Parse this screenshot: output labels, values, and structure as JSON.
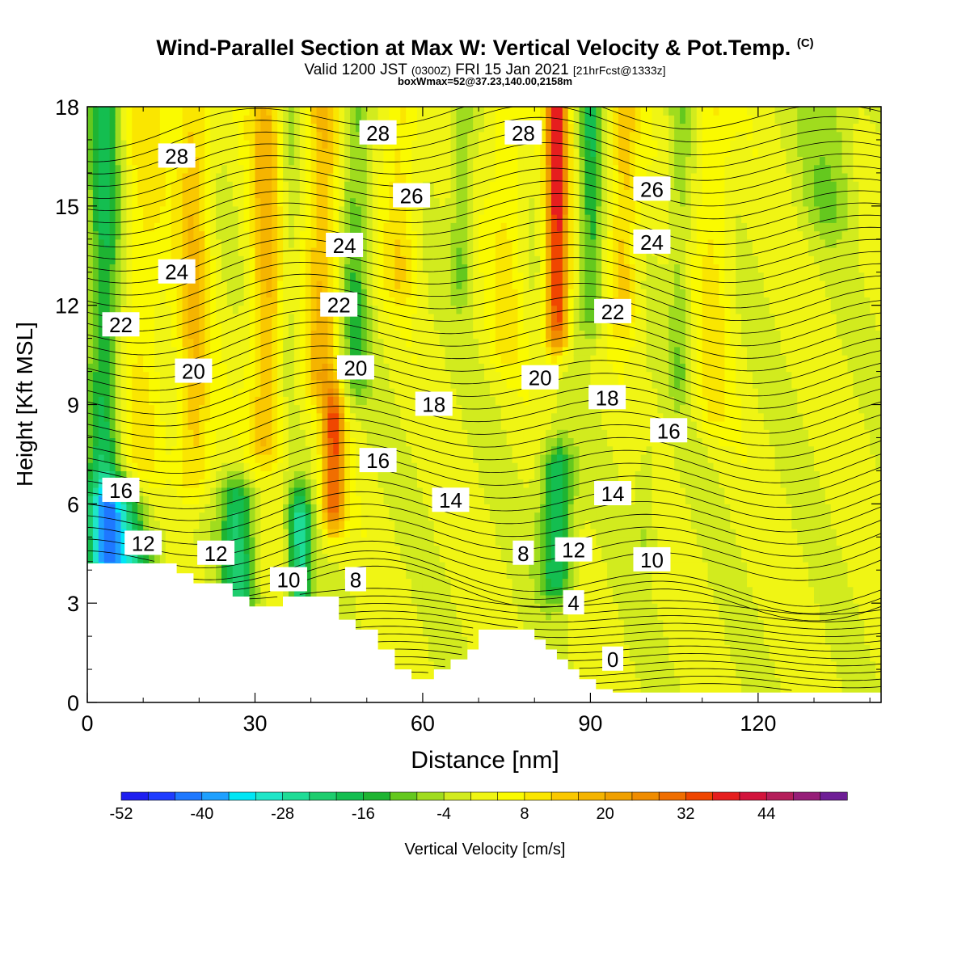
{
  "title": {
    "main": "Wind-Parallel Section at Max W: Vertical Velocity & Pot.Temp.",
    "copyright": "(C)",
    "valid_prefix": "Valid 1200 JST",
    "valid_z": "(0300Z)",
    "valid_date": "FRI 15 Jan 2021",
    "forecast": "[21hrFcst@1333z]",
    "box": "boxWmax=52@37.23,140.00,2158m"
  },
  "colors": {
    "terrain": "#ffffff",
    "contour": "#000000",
    "palette": [
      "#1e1ef0",
      "#1e3cff",
      "#1e78ff",
      "#1ea0ff",
      "#00e6f5",
      "#1ee6c8",
      "#1edc96",
      "#1ecd6e",
      "#14be50",
      "#1eb432",
      "#64c81e",
      "#a0dc1e",
      "#d2eb1e",
      "#f0f514",
      "#fafa00",
      "#fae600",
      "#fac800",
      "#f5b400",
      "#f0a000",
      "#f08c00",
      "#f06e00",
      "#f04600",
      "#e61e1e",
      "#d2143c",
      "#b41e5a",
      "#961e78",
      "#6e1e96"
    ]
  },
  "chart_data": {
    "type": "heatmap",
    "xlabel": "Distance [nm]",
    "ylabel": "Height [Kft MSL]",
    "xlim": [
      0,
      142
    ],
    "ylim": [
      0,
      18
    ],
    "xticks": [
      0,
      30,
      60,
      90,
      120
    ],
    "yticks": [
      0,
      3,
      6,
      9,
      12,
      15,
      18
    ],
    "colorbar": {
      "label": "Vertical Velocity [cm/s]",
      "ticks": [
        -52,
        -40,
        -28,
        -16,
        -4,
        8,
        20,
        32,
        44
      ],
      "min": -52,
      "max": 56,
      "step": 4
    },
    "terrain_kft": [
      [
        0,
        4.2
      ],
      [
        16,
        4.2
      ],
      [
        16,
        3.9
      ],
      [
        19,
        3.9
      ],
      [
        19,
        3.6
      ],
      [
        26,
        3.6
      ],
      [
        26,
        3.2
      ],
      [
        29,
        3.2
      ],
      [
        29,
        2.9
      ],
      [
        35,
        2.9
      ],
      [
        35,
        3.2
      ],
      [
        45,
        3.2
      ],
      [
        45,
        2.5
      ],
      [
        48,
        2.5
      ],
      [
        48,
        2.2
      ],
      [
        52,
        2.2
      ],
      [
        52,
        1.6
      ],
      [
        55,
        1.6
      ],
      [
        55,
        1.0
      ],
      [
        58,
        1.0
      ],
      [
        58,
        0.7
      ],
      [
        62,
        0.7
      ],
      [
        62,
        1.0
      ],
      [
        65,
        1.0
      ],
      [
        65,
        1.3
      ],
      [
        68,
        1.3
      ],
      [
        68,
        1.6
      ],
      [
        70,
        1.6
      ],
      [
        70,
        2.2
      ],
      [
        80,
        2.2
      ],
      [
        80,
        1.9
      ],
      [
        82,
        1.9
      ],
      [
        82,
        1.6
      ],
      [
        84,
        1.6
      ],
      [
        84,
        1.3
      ],
      [
        86,
        1.3
      ],
      [
        86,
        1.0
      ],
      [
        88,
        1.0
      ],
      [
        88,
        0.7
      ],
      [
        91,
        0.7
      ],
      [
        91,
        0.4
      ],
      [
        94,
        0.4
      ],
      [
        94,
        0.3
      ],
      [
        142,
        0.3
      ]
    ],
    "wind_features": [
      {
        "x": 3,
        "y0": 4.5,
        "y1": 18,
        "w": -18,
        "width": 3
      },
      {
        "x": 10,
        "y0": 6,
        "y1": 18,
        "w": 8,
        "width": 4
      },
      {
        "x": 19,
        "y0": 7,
        "y1": 18,
        "w": 14,
        "width": 3
      },
      {
        "x": 32,
        "y0": 8,
        "y1": 18,
        "w": 16,
        "width": 3
      },
      {
        "x": 36,
        "y0": 10,
        "y1": 18,
        "w": -6,
        "width": 2
      },
      {
        "x": 42,
        "y0": 10,
        "y1": 18,
        "w": 16,
        "width": 3
      },
      {
        "x": 48,
        "y0": 10,
        "y1": 18,
        "w": -12,
        "width": 2.5
      },
      {
        "x": 56,
        "y0": 13,
        "y1": 18,
        "w": 10,
        "width": 3
      },
      {
        "x": 67,
        "y0": 13,
        "y1": 18,
        "w": -10,
        "width": 2
      },
      {
        "x": 75,
        "y0": 11,
        "y1": 18,
        "w": 8,
        "width": 3
      },
      {
        "x": 84,
        "y0": 11.5,
        "y1": 18,
        "w": 36,
        "width": 2
      },
      {
        "x": 90,
        "y0": 12,
        "y1": 18,
        "w": -16,
        "width": 2
      },
      {
        "x": 96,
        "y0": 12,
        "y1": 18,
        "w": 14,
        "width": 2.5
      },
      {
        "x": 106,
        "y0": 10,
        "y1": 18,
        "w": -8,
        "width": 2
      },
      {
        "x": 112,
        "y0": 9,
        "y1": 18,
        "w": 8,
        "width": 3
      },
      {
        "x": 133,
        "y0": 15,
        "y1": 18,
        "w": -8,
        "width": 5
      },
      {
        "x": 44,
        "y0": 6,
        "y1": 8.5,
        "w": 30,
        "width": 2
      },
      {
        "x": 6,
        "y0": 4.2,
        "y1": 5.8,
        "w": -28,
        "width": 6
      },
      {
        "x": 27,
        "y0": 3.4,
        "y1": 6.0,
        "w": -22,
        "width": 3
      },
      {
        "x": 38,
        "y0": 3.2,
        "y1": 5.5,
        "w": -26,
        "width": 2
      },
      {
        "x": 84,
        "y0": 4.0,
        "y1": 7.0,
        "w": -22,
        "width": 3
      },
      {
        "x": 100,
        "y0": 5.0,
        "y1": 7.0,
        "w": -6,
        "width": 2
      }
    ],
    "theta_contour_labels": [
      {
        "value": "28",
        "x": 16,
        "y": 16.5
      },
      {
        "value": "28",
        "x": 52,
        "y": 17.2
      },
      {
        "value": "28",
        "x": 78,
        "y": 17.2
      },
      {
        "value": "26",
        "x": 58,
        "y": 15.3
      },
      {
        "value": "26",
        "x": 101,
        "y": 15.5
      },
      {
        "value": "24",
        "x": 16,
        "y": 13.0
      },
      {
        "value": "24",
        "x": 46,
        "y": 13.8
      },
      {
        "value": "24",
        "x": 101,
        "y": 13.9
      },
      {
        "value": "22",
        "x": 6,
        "y": 11.4
      },
      {
        "value": "22",
        "x": 45,
        "y": 12.0
      },
      {
        "value": "22",
        "x": 94,
        "y": 11.8
      },
      {
        "value": "20",
        "x": 19,
        "y": 10.0
      },
      {
        "value": "20",
        "x": 48,
        "y": 10.1
      },
      {
        "value": "20",
        "x": 81,
        "y": 9.8
      },
      {
        "value": "18",
        "x": 62,
        "y": 9.0
      },
      {
        "value": "18",
        "x": 93,
        "y": 9.2
      },
      {
        "value": "16",
        "x": 6,
        "y": 6.4
      },
      {
        "value": "16",
        "x": 52,
        "y": 7.3
      },
      {
        "value": "16",
        "x": 104,
        "y": 8.2
      },
      {
        "value": "14",
        "x": 65,
        "y": 6.1
      },
      {
        "value": "14",
        "x": 94,
        "y": 6.3
      },
      {
        "value": "12",
        "x": 10,
        "y": 4.8
      },
      {
        "value": "12",
        "x": 23,
        "y": 4.5
      },
      {
        "value": "12",
        "x": 87,
        "y": 4.6
      },
      {
        "value": "10",
        "x": 36,
        "y": 3.7
      },
      {
        "value": "10",
        "x": 101,
        "y": 4.3
      },
      {
        "value": "8",
        "x": 48,
        "y": 3.7
      },
      {
        "value": "8",
        "x": 78,
        "y": 4.5
      },
      {
        "value": "4",
        "x": 87,
        "y": 3.0
      },
      {
        "value": "0",
        "x": 94,
        "y": 1.3
      }
    ]
  }
}
